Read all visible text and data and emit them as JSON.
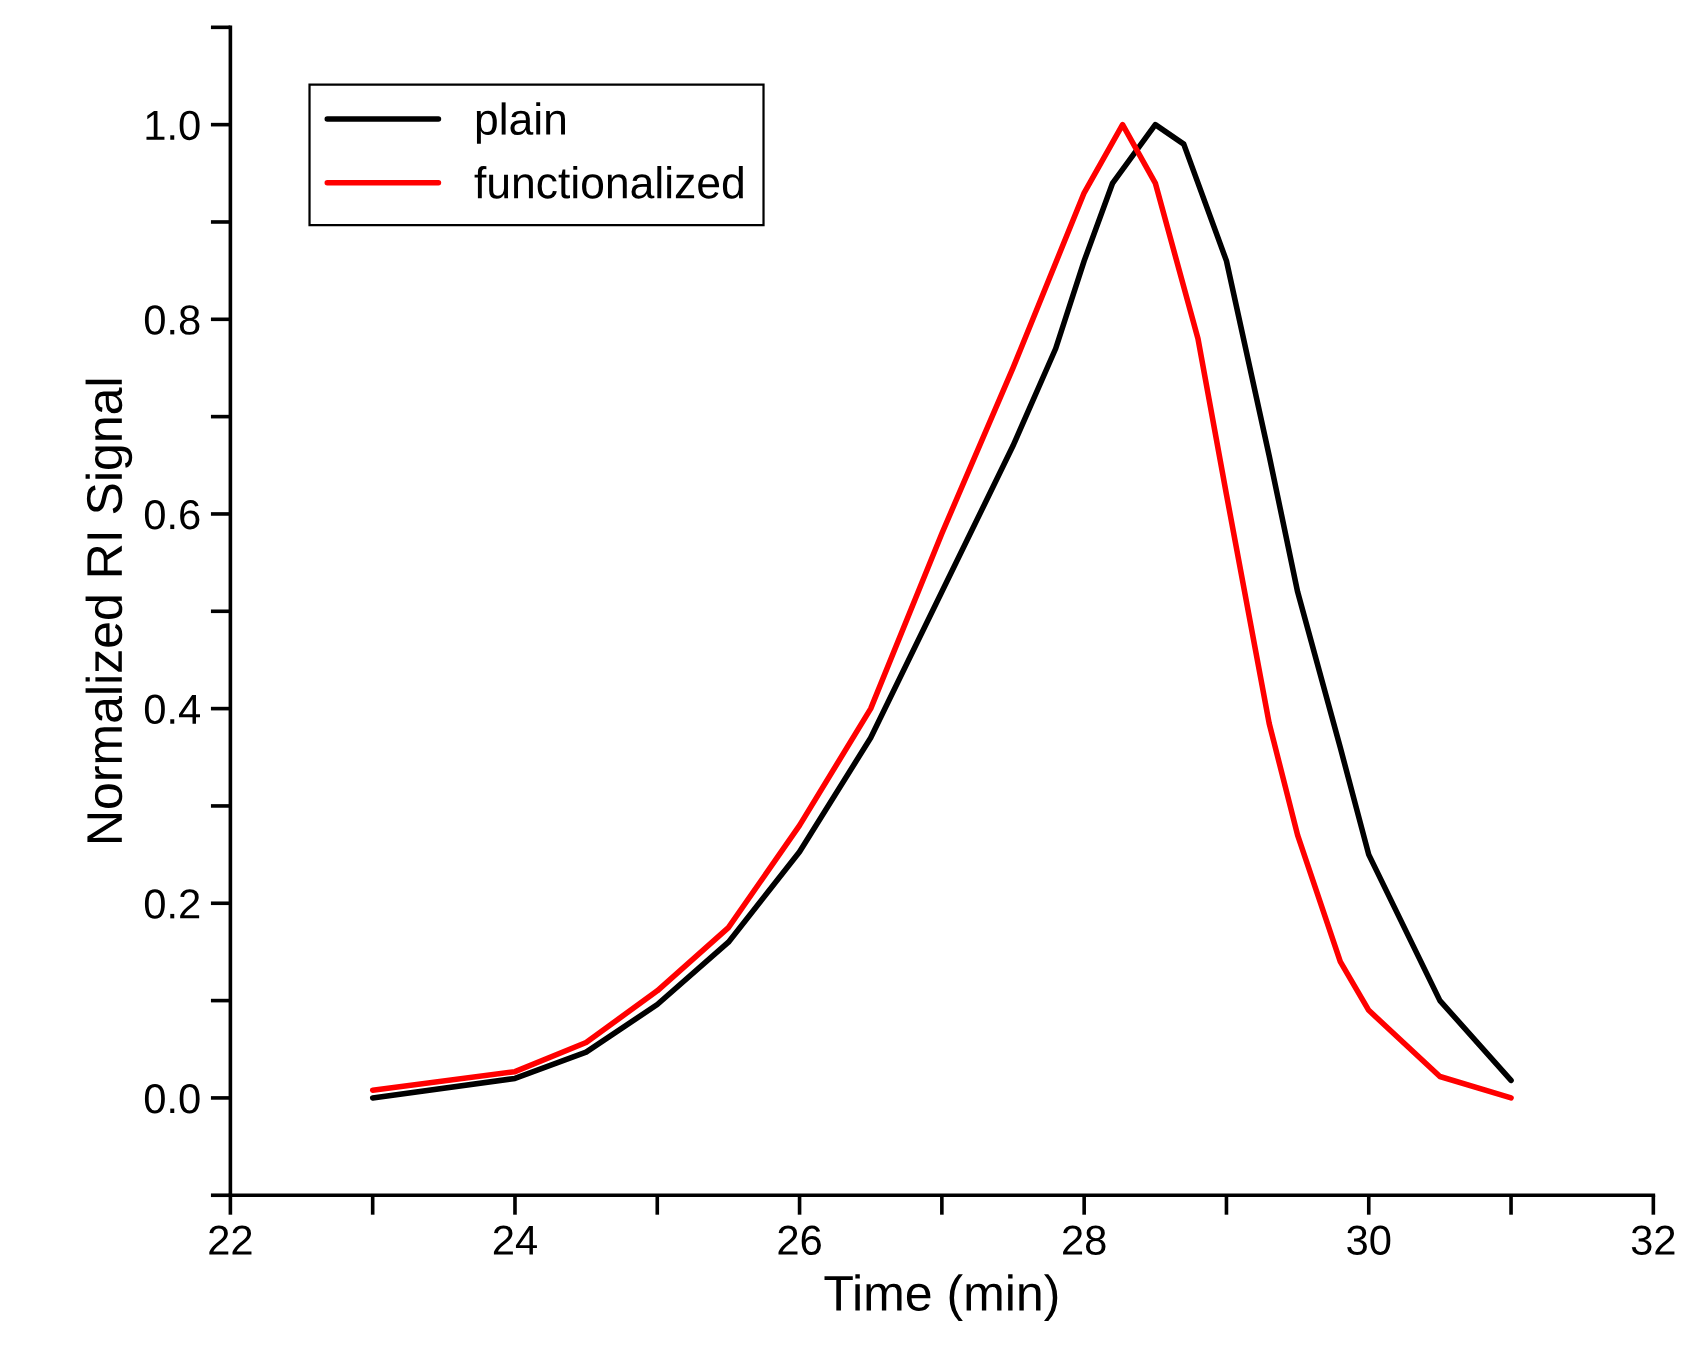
{
  "chart_data": {
    "type": "line",
    "xlabel": "Time (min)",
    "ylabel": "Normalized RI Signal",
    "xlim": [
      22,
      32
    ],
    "ylim": [
      -0.1,
      1.1
    ],
    "xticks": [
      22,
      {
        "value": 23,
        "label": null
      },
      24,
      {
        "value": 25,
        "label": null
      },
      26,
      {
        "value": 27,
        "label": null
      },
      28,
      {
        "value": 29,
        "label": null
      },
      30,
      {
        "value": 31,
        "label": null
      },
      32
    ],
    "yticks": [
      {
        "value": -0.1,
        "label": null
      },
      {
        "value": 0,
        "label": "0.0"
      },
      {
        "value": 0.1,
        "label": null
      },
      {
        "value": 0.2,
        "label": "0.2"
      },
      {
        "value": 0.3,
        "label": null
      },
      {
        "value": 0.4,
        "label": "0.4"
      },
      {
        "value": 0.5,
        "label": null
      },
      {
        "value": 0.6,
        "label": "0.6"
      },
      {
        "value": 0.7,
        "label": null
      },
      {
        "value": 0.8,
        "label": "0.8"
      },
      {
        "value": 0.9,
        "label": null
      },
      {
        "value": 1.0,
        "label": "1.0"
      },
      {
        "value": 1.1,
        "label": null
      }
    ],
    "legend": "top left",
    "grid": false,
    "marker": "none",
    "line_style": "solid",
    "series": [
      {
        "name": "plain",
        "color": "#000000",
        "x": [
          23.0,
          24.0,
          24.5,
          25.0,
          25.5,
          26.0,
          26.5,
          27.0,
          27.3,
          27.5,
          27.8,
          28.0,
          28.2,
          28.5,
          28.7,
          29.0,
          29.3,
          29.5,
          29.8,
          30.0,
          30.5,
          31.0
        ],
        "values": [
          0.0,
          0.02,
          0.047,
          0.096,
          0.16,
          0.253,
          0.37,
          0.52,
          0.61,
          0.67,
          0.77,
          0.86,
          0.94,
          1.0,
          0.98,
          0.86,
          0.66,
          0.52,
          0.36,
          0.25,
          0.1,
          0.018
        ]
      },
      {
        "name": "functionalized",
        "color": "#ff0000",
        "x": [
          23.0,
          24.0,
          24.5,
          25.0,
          25.5,
          26.0,
          26.5,
          27.0,
          27.5,
          28.0,
          28.27,
          28.5,
          28.8,
          29.0,
          29.3,
          29.5,
          29.8,
          30.0,
          30.5,
          31.0
        ],
        "values": [
          0.008,
          0.027,
          0.057,
          0.11,
          0.175,
          0.28,
          0.4,
          0.58,
          0.75,
          0.93,
          1.0,
          0.94,
          0.78,
          0.62,
          0.385,
          0.27,
          0.14,
          0.09,
          0.022,
          0.0
        ]
      }
    ]
  }
}
